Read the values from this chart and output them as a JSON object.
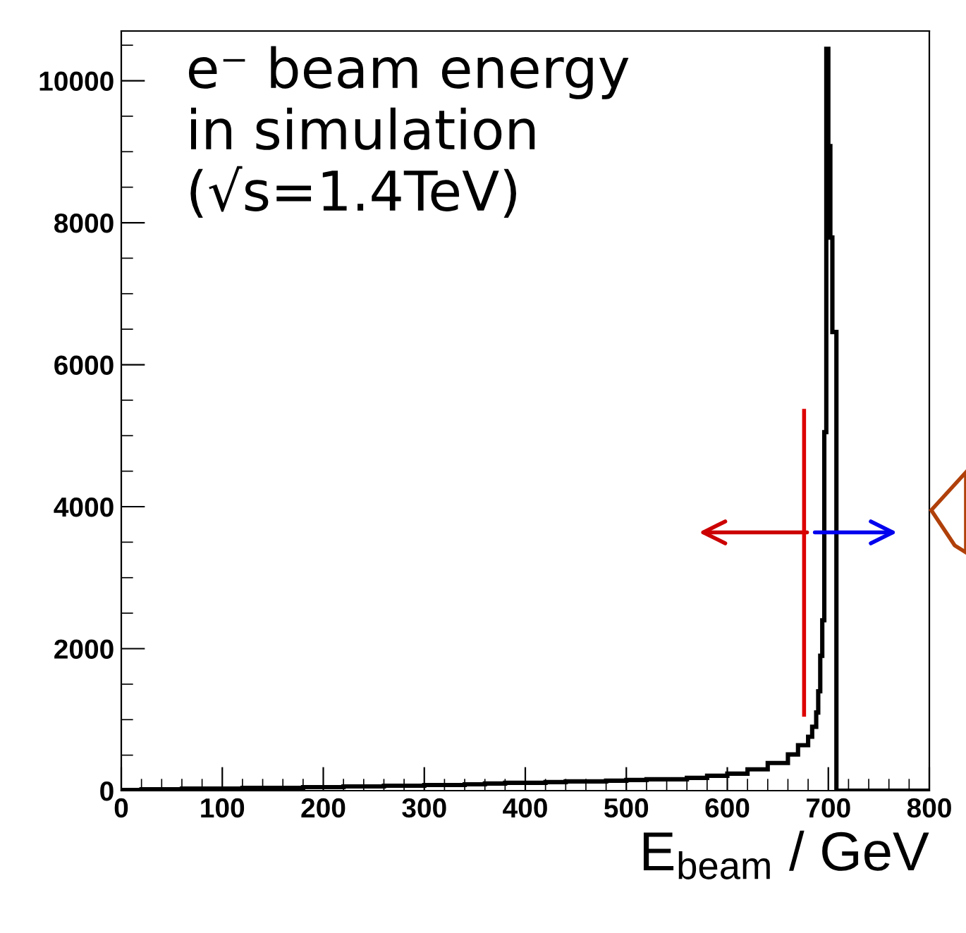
{
  "chart_data": {
    "type": "histogram",
    "xlabel": "E$_{beam}$ / GeV",
    "annotations": [
      "e⁻ beam energy\nin simulation\n(√s=1.4TeV)"
    ],
    "bins": [
      0,
      20,
      40,
      60,
      80,
      100,
      120,
      140,
      160,
      180,
      200,
      220,
      240,
      260,
      280,
      300,
      320,
      340,
      360,
      380,
      400,
      420,
      440,
      460,
      480,
      500,
      520,
      540,
      560,
      580,
      600,
      620,
      640,
      660,
      670,
      680,
      684,
      688,
      690,
      692,
      694,
      696,
      698,
      700,
      702,
      704,
      708,
      800
    ],
    "values": [
      10,
      20,
      20,
      30,
      30,
      30,
      40,
      40,
      40,
      50,
      50,
      60,
      60,
      70,
      70,
      80,
      80,
      90,
      100,
      110,
      110,
      120,
      130,
      130,
      140,
      150,
      160,
      160,
      180,
      210,
      240,
      300,
      390,
      510,
      640,
      760,
      900,
      1100,
      1400,
      1900,
      2400,
      5050,
      10450,
      9080,
      7790,
      6460,
      0
    ],
    "color": "#000000",
    "xlim": [
      0,
      800
    ],
    "ylim": [
      0,
      10700
    ],
    "xticks": [
      0,
      100,
      200,
      300,
      400,
      500,
      600,
      700,
      800
    ],
    "yticks": [
      0,
      2000,
      4000,
      6000,
      8000,
      10000
    ],
    "ref_lines": [
      {
        "axis": "x",
        "value": 676,
        "color": "#dd0000",
        "line_style": "solid"
      }
    ],
    "grid": false,
    "legend": false
  }
}
